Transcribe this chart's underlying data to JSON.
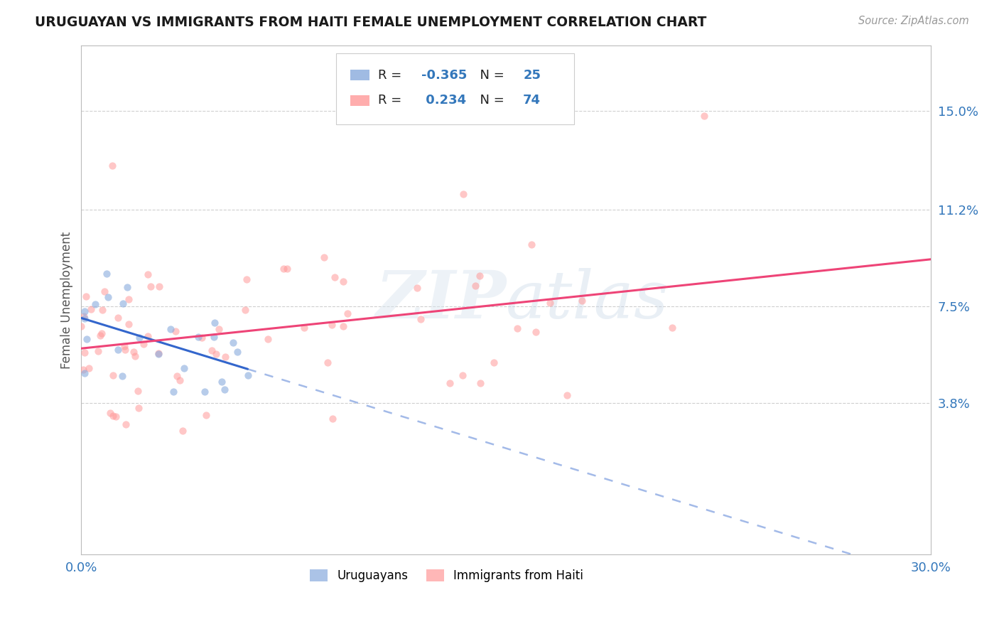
{
  "title": "URUGUAYAN VS IMMIGRANTS FROM HAITI FEMALE UNEMPLOYMENT CORRELATION CHART",
  "source": "Source: ZipAtlas.com",
  "ylabel": "Female Unemployment",
  "xlim": [
    0.0,
    0.3
  ],
  "ylim": [
    -0.02,
    0.175
  ],
  "xticklabels": [
    "0.0%",
    "30.0%"
  ],
  "ytick_positions": [
    0.038,
    0.075,
    0.112,
    0.15
  ],
  "ytick_labels": [
    "3.8%",
    "7.5%",
    "11.2%",
    "15.0%"
  ],
  "uruguayan_color": "#88AADD",
  "haitian_color": "#FF9999",
  "trendline_blue": "#3366CC",
  "trendline_pink": "#EE4477",
  "R_uruguayan": -0.365,
  "N_uruguayan": 25,
  "R_haitian": 0.234,
  "N_haitian": 74,
  "legend_labels": [
    "Uruguayans",
    "Immigrants from Haiti"
  ],
  "watermark": "ZIPAtlas",
  "background_color": "#FFFFFF",
  "grid_color": "#BBBBBB"
}
